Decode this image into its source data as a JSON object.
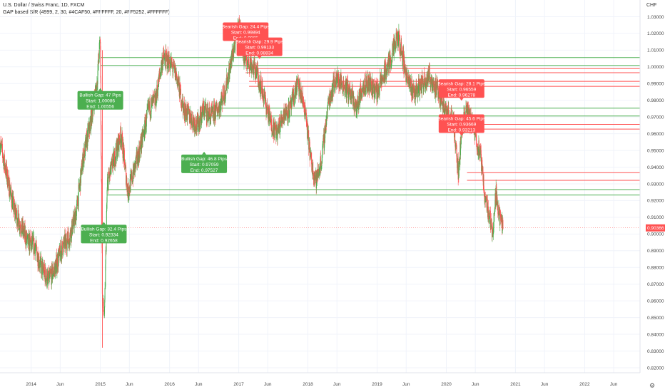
{
  "header": {
    "symbol_line": "U.S. Dollar / Swiss Franc, 1D, FXCM",
    "indicator_line": "GAP based S/R (4999, 2, 30, #4CAF50, #FFFFFF, 20, #FF5252, #FFFFFF)"
  },
  "currency": "CHF",
  "icons": {
    "axis_settings": "gear-icon"
  },
  "chart_data": {
    "type": "candlestick",
    "title": "U.S. Dollar / Swiss Franc, 1D, FXCM",
    "ylim": [
      0.817,
      1.04
    ],
    "y_ticks": [
      "0.82000",
      "0.83000",
      "0.84000",
      "0.85000",
      "0.86000",
      "0.87000",
      "0.88000",
      "0.89000",
      "0.90000",
      "0.91000",
      "0.92000",
      "0.93000",
      "0.94000",
      "0.95000",
      "0.96000",
      "0.97000",
      "0.98000",
      "0.99000",
      "1.00000",
      "1.01000",
      "1.02000",
      "1.03000"
    ],
    "x_ticks": [
      {
        "label": "2014",
        "t": 2014.0
      },
      {
        "label": "Jun",
        "t": 2014.42
      },
      {
        "label": "2015",
        "t": 2015.0
      },
      {
        "label": "Jun",
        "t": 2015.42
      },
      {
        "label": "2016",
        "t": 2016.0
      },
      {
        "label": "Jun",
        "t": 2016.42
      },
      {
        "label": "2017",
        "t": 2017.0
      },
      {
        "label": "Jun",
        "t": 2017.42
      },
      {
        "label": "2018",
        "t": 2018.0
      },
      {
        "label": "Jun",
        "t": 2018.42
      },
      {
        "label": "2019",
        "t": 2019.0
      },
      {
        "label": "Jun",
        "t": 2019.42
      },
      {
        "label": "2020",
        "t": 2020.0
      },
      {
        "label": "Jun",
        "t": 2020.42
      },
      {
        "label": "2021",
        "t": 2021.0
      },
      {
        "label": "Jun",
        "t": 2021.42
      },
      {
        "label": "2022",
        "t": 2022.0
      },
      {
        "label": "Jun",
        "t": 2022.42
      }
    ],
    "xlim": [
      2013.55,
      2022.8
    ],
    "last_price": "0.90366",
    "last_value": 0.90366,
    "up_color": "#4CAF50",
    "down_color": "#FF5252",
    "price_path": [
      [
        2013.55,
        0.955
      ],
      [
        2013.65,
        0.935
      ],
      [
        2013.75,
        0.915
      ],
      [
        2013.85,
        0.905
      ],
      [
        2013.95,
        0.895
      ],
      [
        2014.05,
        0.893
      ],
      [
        2014.15,
        0.88
      ],
      [
        2014.25,
        0.872
      ],
      [
        2014.35,
        0.88
      ],
      [
        2014.45,
        0.892
      ],
      [
        2014.55,
        0.898
      ],
      [
        2014.65,
        0.912
      ],
      [
        2014.75,
        0.945
      ],
      [
        2014.85,
        0.965
      ],
      [
        2014.95,
        0.99
      ],
      [
        2015.0,
        1.018
      ],
      [
        2015.03,
        0.86
      ],
      [
        2015.06,
        0.85
      ],
      [
        2015.1,
        0.93
      ],
      [
        2015.2,
        0.945
      ],
      [
        2015.3,
        0.96
      ],
      [
        2015.4,
        0.925
      ],
      [
        2015.5,
        0.94
      ],
      [
        2015.6,
        0.955
      ],
      [
        2015.7,
        0.975
      ],
      [
        2015.8,
        0.98
      ],
      [
        2015.9,
        1.005
      ],
      [
        2016.0,
        1.003
      ],
      [
        2016.1,
        0.995
      ],
      [
        2016.2,
        0.975
      ],
      [
        2016.3,
        0.97
      ],
      [
        2016.4,
        0.965
      ],
      [
        2016.5,
        0.975
      ],
      [
        2016.6,
        0.97
      ],
      [
        2016.7,
        0.975
      ],
      [
        2016.8,
        0.985
      ],
      [
        2016.9,
        1.005
      ],
      [
        2017.0,
        1.025
      ],
      [
        2017.08,
        1.005
      ],
      [
        2017.15,
        1.003
      ],
      [
        2017.25,
        0.998
      ],
      [
        2017.35,
        0.985
      ],
      [
        2017.45,
        0.968
      ],
      [
        2017.55,
        0.96
      ],
      [
        2017.65,
        0.972
      ],
      [
        2017.75,
        0.975
      ],
      [
        2017.85,
        0.99
      ],
      [
        2017.95,
        0.976
      ],
      [
        2018.05,
        0.942
      ],
      [
        2018.12,
        0.932
      ],
      [
        2018.2,
        0.945
      ],
      [
        2018.3,
        0.98
      ],
      [
        2018.4,
        0.993
      ],
      [
        2018.5,
        0.99
      ],
      [
        2018.6,
        0.985
      ],
      [
        2018.7,
        0.975
      ],
      [
        2018.8,
        0.99
      ],
      [
        2018.9,
        0.99
      ],
      [
        2019.0,
        0.985
      ],
      [
        2019.1,
        0.995
      ],
      [
        2019.2,
        1.005
      ],
      [
        2019.3,
        1.018
      ],
      [
        2019.35,
        1.01
      ],
      [
        2019.45,
        0.99
      ],
      [
        2019.55,
        0.985
      ],
      [
        2019.65,
        0.99
      ],
      [
        2019.75,
        0.995
      ],
      [
        2019.85,
        0.987
      ],
      [
        2019.95,
        0.98
      ],
      [
        2020.0,
        0.972
      ],
      [
        2020.1,
        0.968
      ],
      [
        2020.18,
        0.935
      ],
      [
        2020.22,
        0.965
      ],
      [
        2020.3,
        0.973
      ],
      [
        2020.4,
        0.962
      ],
      [
        2020.5,
        0.945
      ],
      [
        2020.55,
        0.925
      ],
      [
        2020.6,
        0.915
      ],
      [
        2020.67,
        0.902
      ],
      [
        2020.72,
        0.925
      ],
      [
        2020.78,
        0.908
      ],
      [
        2020.82,
        0.904
      ]
    ],
    "gap_levels": [
      {
        "type": "bullish",
        "start": 1.00556,
        "end": 1.00086,
        "t_start": 2015.0,
        "color": "#4CAF50"
      },
      {
        "type": "bullish",
        "start": 0.97527,
        "end": 0.97059,
        "t_start": 2016.5,
        "color": "#4CAF50"
      },
      {
        "type": "bullish",
        "start": 0.92658,
        "end": 0.92334,
        "t_start": 2015.1,
        "color": "#4CAF50"
      },
      {
        "type": "bearish",
        "start": 0.99894,
        "end": 0.9965,
        "t_start": 2017.1,
        "color": "#FF5252"
      },
      {
        "type": "bearish",
        "start": 0.99133,
        "end": 0.98834,
        "t_start": 2017.15,
        "color": "#FF5252"
      },
      {
        "type": "bearish",
        "start": 0.96559,
        "end": 0.96278,
        "t_start": 2020.0,
        "color": "#FF5252"
      },
      {
        "type": "bearish",
        "start": 0.93669,
        "end": 0.93213,
        "t_start": 2020.3,
        "color": "#FF5252"
      }
    ],
    "annotations": [
      {
        "kind": "bullish",
        "lines": [
          "Bullish Gap: 47 Pips",
          "Start: 1.00086",
          "End: 1.00556"
        ],
        "t": 2015.0,
        "y": 0.98,
        "color": "#4CAF50"
      },
      {
        "kind": "bullish",
        "lines": [
          "Bullish Gap: 46.8 Pips",
          "Start: 0.97059",
          "End: 0.97527"
        ],
        "t": 2016.5,
        "y": 0.942,
        "color": "#4CAF50"
      },
      {
        "kind": "bullish",
        "lines": [
          "Bullish Gap: 32.4 Pips",
          "Start: 0.92334",
          "End: 0.92658"
        ],
        "t": 2015.05,
        "y": 0.9,
        "color": "#4CAF50"
      },
      {
        "kind": "bearish",
        "lines": [
          "Bearish Gap: 24.4 Pips",
          "Start: 0.99894",
          "End: 0.9965"
        ],
        "t": 2017.1,
        "y": 1.021,
        "color": "#FF5252"
      },
      {
        "kind": "bearish",
        "lines": [
          "Bearish Gap: 29.9 Pips",
          "Start: 0.99133",
          "End: 0.98834"
        ],
        "t": 2017.3,
        "y": 1.012,
        "color": "#FF5252"
      },
      {
        "kind": "bearish",
        "lines": [
          "Bearish Gap: 28.1 Pips",
          "Start: 0.96559",
          "End: 0.96278"
        ],
        "t": 2020.22,
        "y": 0.987,
        "color": "#FF5252"
      },
      {
        "kind": "bearish",
        "lines": [
          "Bearish Gap: 45.6 Pips",
          "Start: 0.93669",
          "End: 0.93213"
        ],
        "t": 2020.22,
        "y": 0.966,
        "color": "#FF5252"
      }
    ]
  }
}
